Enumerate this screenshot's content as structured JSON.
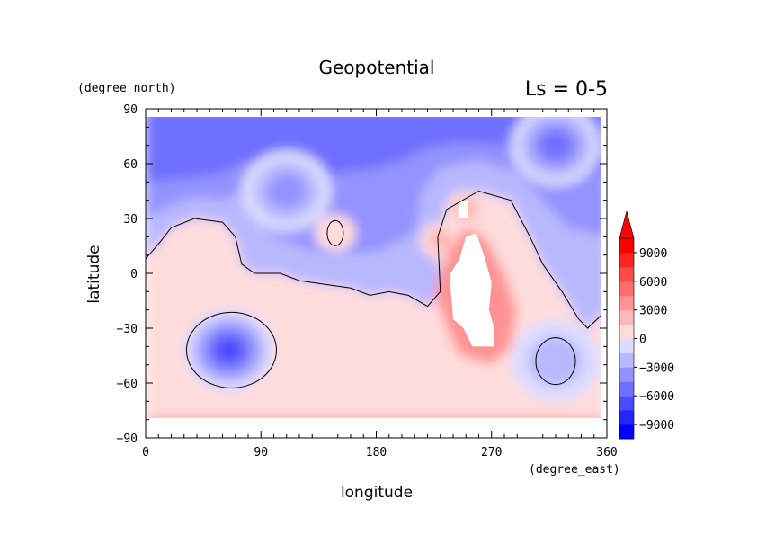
{
  "chart_data": {
    "type": "heatmap",
    "title": "Geopotential",
    "subtitle": "Ls = 0-5",
    "xlabel": "longitude",
    "ylabel": "latitude",
    "x_units": "(degree_east)",
    "y_units": "(degree_north)",
    "xlim": [
      0,
      360
    ],
    "ylim": [
      -90,
      90
    ],
    "x_ticks": [
      0,
      90,
      180,
      270,
      360
    ],
    "y_ticks": [
      -90,
      -60,
      -30,
      0,
      30,
      60,
      90
    ],
    "x_tick_labels": [
      "0",
      "90",
      "180",
      "270",
      "360"
    ],
    "y_tick_labels": [
      "−90",
      "−60",
      "−30",
      "0",
      "30",
      "60",
      "90"
    ],
    "colorbar": {
      "labels": [
        "9000",
        "6000",
        "3000",
        "0",
        "−3000",
        "−6000",
        "−9000"
      ],
      "levels": [
        -10500,
        -9000,
        -7500,
        -6000,
        -4500,
        -3000,
        -1500,
        0,
        1500,
        3000,
        4500,
        6000,
        7500,
        9000,
        10500
      ],
      "extend": "max"
    },
    "zero_contour": true,
    "missing_region": "white (no data) over the high terrain near longitude 230–280, latitude −40 to 20",
    "features": [
      {
        "lon": 65,
        "lat": -42,
        "value": -7500
      },
      {
        "lon": 320,
        "lat": -48,
        "value": -3500
      },
      {
        "lon": 148,
        "lat": 22,
        "value": 1000
      },
      {
        "lon": 250,
        "lat": 35,
        "value": 2500
      },
      {
        "lon": 230,
        "lat": 18,
        "value": 3000
      },
      {
        "lon": 110,
        "lat": 45,
        "value": -5000
      },
      {
        "lon": 320,
        "lat": 70,
        "value": -5500
      }
    ]
  },
  "colors": {
    "neg": [
      "#0000ff",
      "#2525ff",
      "#4a4aff",
      "#6e6eff",
      "#9393ff",
      "#b8b8ff",
      "#dcdcff"
    ],
    "pos": [
      "#ffdcdc",
      "#ffb8b8",
      "#ff9393",
      "#ff6e6e",
      "#ff4a4a",
      "#ff2525",
      "#ff0000"
    ],
    "neutral": "#ffffff"
  }
}
